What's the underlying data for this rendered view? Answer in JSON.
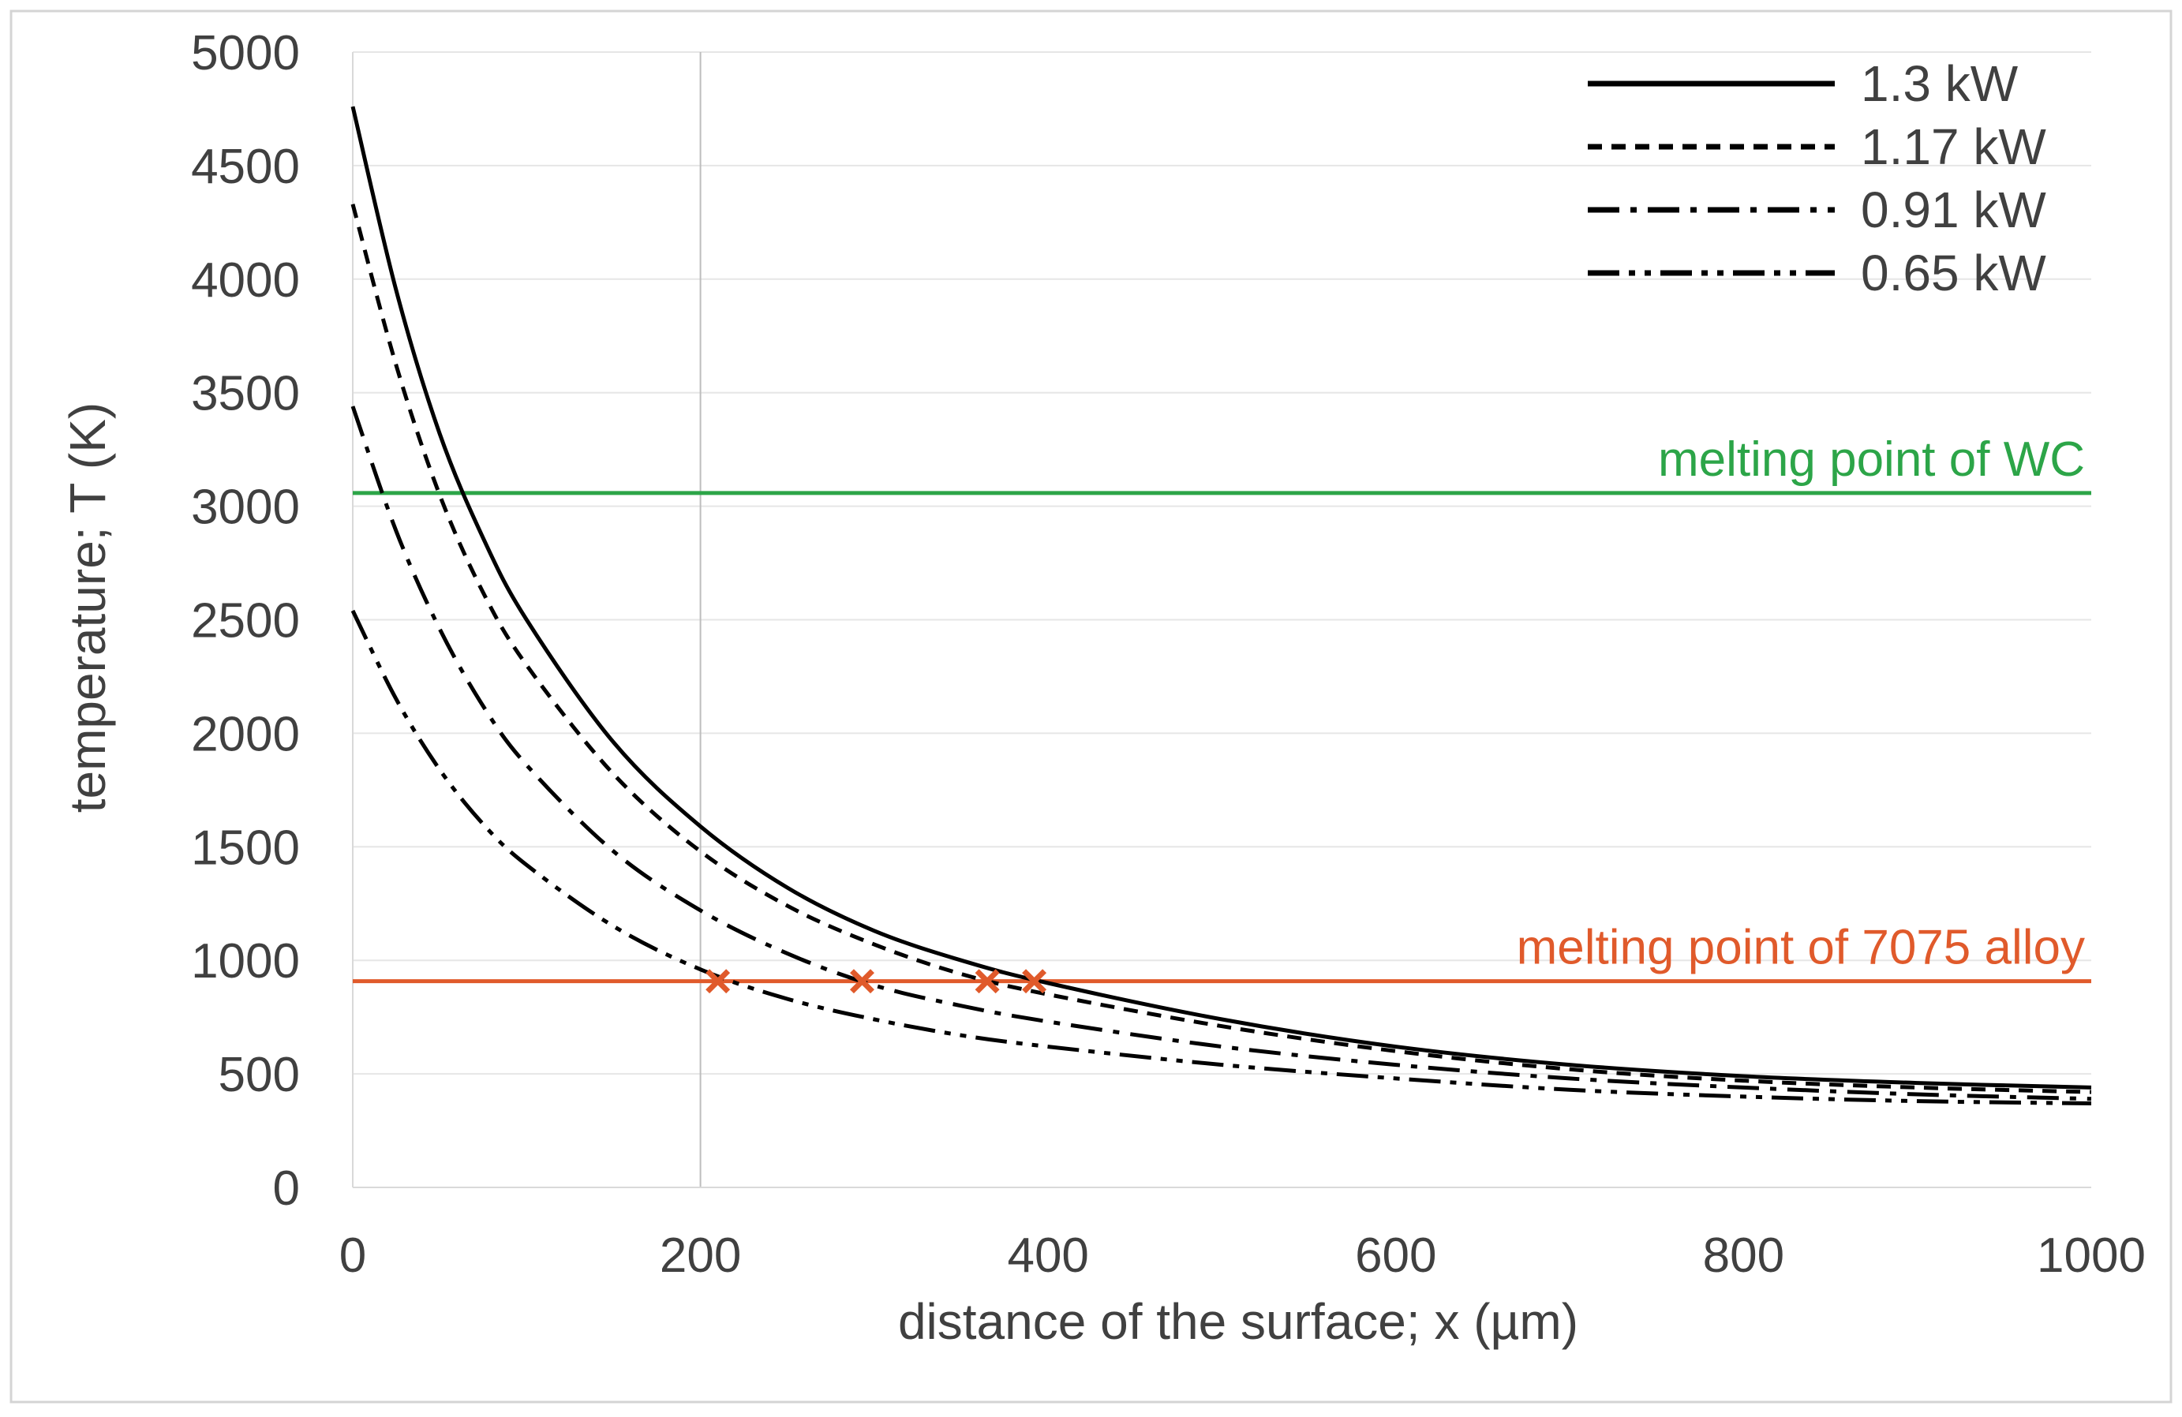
{
  "chart_data": {
    "type": "line",
    "title": "",
    "xlabel": "distance of the surface; x (µm)",
    "ylabel": "temperature; T (K)",
    "xlim": [
      0,
      1000
    ],
    "ylim": [
      0,
      5000
    ],
    "xticks": [
      "0",
      "200",
      "400",
      "600",
      "800",
      "1000"
    ],
    "yticks": [
      "0",
      "500",
      "1000",
      "1500",
      "2000",
      "2500",
      "3000",
      "3500",
      "4000",
      "4500",
      "5000"
    ],
    "legend_position": "top-right",
    "series": [
      {
        "name": "1.3 kW",
        "style": "solid",
        "x": [
          0,
          25,
          50,
          75,
          100,
          150,
          200,
          250,
          300,
          350,
          400,
          500,
          600,
          700,
          800,
          900,
          1000
        ],
        "values": [
          4760,
          3950,
          3320,
          2860,
          2500,
          1960,
          1590,
          1320,
          1130,
          1000,
          900,
          740,
          620,
          540,
          490,
          460,
          440
        ]
      },
      {
        "name": "1.17 kW",
        "style": "dotted",
        "x": [
          0,
          25,
          50,
          75,
          100,
          150,
          200,
          250,
          300,
          350,
          400,
          500,
          600,
          700,
          800,
          900,
          1000
        ],
        "values": [
          4330,
          3620,
          3050,
          2620,
          2300,
          1820,
          1480,
          1240,
          1070,
          940,
          850,
          710,
          600,
          520,
          470,
          440,
          420
        ]
      },
      {
        "name": "0.91 kW",
        "style": "dash-dot",
        "x": [
          0,
          25,
          50,
          75,
          100,
          150,
          200,
          250,
          300,
          350,
          400,
          500,
          600,
          700,
          800,
          900,
          1000
        ],
        "values": [
          3440,
          2890,
          2460,
          2120,
          1860,
          1480,
          1220,
          1030,
          890,
          800,
          730,
          620,
          540,
          480,
          440,
          410,
          390
        ]
      },
      {
        "name": "0.65 kW",
        "style": "dash-dot-dot",
        "x": [
          0,
          25,
          50,
          75,
          100,
          150,
          200,
          250,
          300,
          350,
          400,
          500,
          600,
          700,
          800,
          900,
          1000
        ],
        "values": [
          2540,
          2150,
          1840,
          1600,
          1420,
          1150,
          960,
          830,
          740,
          670,
          620,
          540,
          480,
          430,
          400,
          380,
          370
        ]
      }
    ],
    "reference_lines": [
      {
        "label": "melting point of WC",
        "y": 3058,
        "color": "#2ca548"
      },
      {
        "label": "melting point of 7075 alloy",
        "y": 908,
        "color": "#e05a2b"
      }
    ],
    "intersection_markers": {
      "y": 908,
      "x": [
        210,
        293,
        365,
        392
      ],
      "color": "#e05a2b"
    },
    "grid": {
      "horizontal_lines_at": [
        500,
        1000,
        1500,
        2000,
        2500,
        3000,
        3500,
        4000,
        4500,
        5000
      ],
      "vertical_lines_at": [
        200
      ]
    }
  }
}
